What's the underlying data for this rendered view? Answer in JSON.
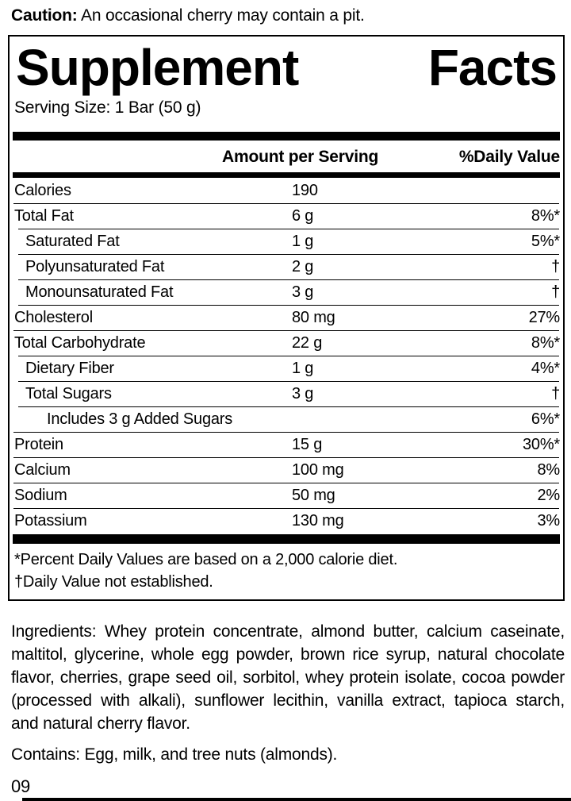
{
  "colors": {
    "ink": "#000000",
    "paper": "#ffffff"
  },
  "caution": {
    "label": "Caution:",
    "text": "An occasional cherry may contain a pit."
  },
  "panel": {
    "title_left": "Supplement",
    "title_right": "Facts",
    "serving_size": "Serving Size: 1 Bar (50 g)",
    "columns": {
      "amount": "Amount per Serving",
      "daily_value": "%Daily Value"
    },
    "rows": [
      {
        "name": "Calories",
        "amount": "190",
        "dv": "",
        "indent": 0
      },
      {
        "name": "Total Fat",
        "amount": "6 g",
        "dv": "8%*",
        "indent": 0
      },
      {
        "name": "Saturated Fat",
        "amount": "1 g",
        "dv": "5%*",
        "indent": 1
      },
      {
        "name": "Polyunsaturated Fat",
        "amount": "2 g",
        "dv": "†",
        "indent": 1
      },
      {
        "name": "Monounsaturated Fat",
        "amount": "3 g",
        "dv": "†",
        "indent": 1
      },
      {
        "name": "Cholesterol",
        "amount": "80 mg",
        "dv": "27%",
        "indent": 0
      },
      {
        "name": "Total Carbohydrate",
        "amount": "22 g",
        "dv": "8%*",
        "indent": 0
      },
      {
        "name": "Dietary Fiber",
        "amount": "1 g",
        "dv": "4%*",
        "indent": 1
      },
      {
        "name": "Total Sugars",
        "amount": "3 g",
        "dv": "†",
        "indent": 1
      },
      {
        "name": "Includes 3 g Added Sugars",
        "amount": "",
        "dv": "6%*",
        "indent": 2
      },
      {
        "name": "Protein",
        "amount": "15 g",
        "dv": "30%*",
        "indent": 0
      },
      {
        "name": "Calcium",
        "amount": "100 mg",
        "dv": "8%",
        "indent": 0
      },
      {
        "name": "Sodium",
        "amount": "50 mg",
        "dv": "2%",
        "indent": 0
      },
      {
        "name": "Potassium",
        "amount": "130 mg",
        "dv": "3%",
        "indent": 0
      }
    ],
    "footnotes": [
      "*Percent Daily Values are based on a 2,000 calorie diet.",
      "†Daily Value not established."
    ]
  },
  "ingredients": {
    "lines": [
      "Ingredients: Whey protein concentrate, almond butter, calcium caseinate,",
      "maltitol, glycerine, whole egg powder, brown rice syrup, natural chocolate",
      "flavor, cherries, grape seed oil, sorbitol, whey protein isolate, cocoa powder",
      "(processed with alkali), sunflower lecithin, vanilla extract, tapioca starch,",
      "and natural cherry flavor."
    ]
  },
  "contains": "Contains: Egg, milk, and tree nuts (almonds).",
  "page_code": "09"
}
